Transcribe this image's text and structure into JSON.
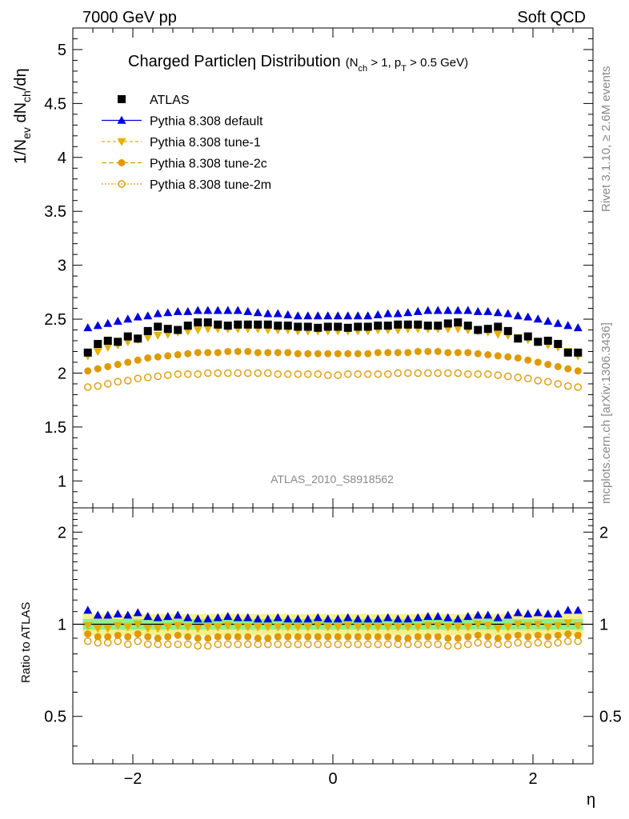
{
  "header": {
    "left": "7000 GeV pp",
    "right": "Soft QCD"
  },
  "side_labels": {
    "rivet": "Rivet 3.1.10, ≥ 2.6M events",
    "mcplots": "mcplots.cern.ch [arXiv:1306.3436]"
  },
  "chart_data": [
    {
      "type": "scatter",
      "title_main": "Charged Particle",
      "title_eta": "η",
      "title_tail": " Distribution",
      "title_cut": "(N",
      "title_cut_sub": "ch",
      "title_cut_2": " > 1, p",
      "title_cut_sub2": "T",
      "title_cut_3": " > 0.5 GeV)",
      "ylabel_main": "1/N",
      "ylabel_sub1": "ev",
      "ylabel_mid": " dN",
      "ylabel_sub2": "ch",
      "ylabel_tail": "/dη",
      "xlabel": "η",
      "xlim": [
        -2.6,
        2.6
      ],
      "ylim": [
        0.75,
        5.2
      ],
      "yticks": [
        1,
        1.5,
        2,
        2.5,
        3,
        3.5,
        4,
        4.5,
        5
      ],
      "ytick_labels": [
        "1",
        "1.5",
        "2",
        "2.5",
        "3",
        "3.5",
        "4",
        "4.5",
        "5"
      ],
      "watermark": "ATLAS_2010_S8918562",
      "legend_position": "top-left",
      "x": [
        -2.45,
        -2.35,
        -2.25,
        -2.15,
        -2.05,
        -1.95,
        -1.85,
        -1.75,
        -1.65,
        -1.55,
        -1.45,
        -1.35,
        -1.25,
        -1.15,
        -1.05,
        -0.95,
        -0.85,
        -0.75,
        -0.65,
        -0.55,
        -0.45,
        -0.35,
        -0.25,
        -0.15,
        -0.05,
        0.05,
        0.15,
        0.25,
        0.35,
        0.45,
        0.55,
        0.65,
        0.75,
        0.85,
        0.95,
        1.05,
        1.15,
        1.25,
        1.35,
        1.45,
        1.55,
        1.65,
        1.75,
        1.85,
        1.95,
        2.05,
        2.15,
        2.25,
        2.35,
        2.45
      ],
      "series": [
        {
          "name": "ATLAS",
          "color": "#000000",
          "marker": "square",
          "values": [
            2.19,
            2.27,
            2.3,
            2.29,
            2.34,
            2.32,
            2.39,
            2.43,
            2.41,
            2.4,
            2.44,
            2.47,
            2.47,
            2.45,
            2.44,
            2.45,
            2.45,
            2.45,
            2.45,
            2.44,
            2.44,
            2.43,
            2.43,
            2.42,
            2.43,
            2.43,
            2.42,
            2.43,
            2.43,
            2.44,
            2.44,
            2.45,
            2.45,
            2.45,
            2.44,
            2.44,
            2.46,
            2.47,
            2.44,
            2.4,
            2.41,
            2.43,
            2.39,
            2.32,
            2.34,
            2.29,
            2.3,
            2.27,
            2.19,
            2.19
          ]
        },
        {
          "name": "Pythia 8.308 default",
          "color": "#0000e0",
          "marker": "triangle-up",
          "values": [
            2.42,
            2.44,
            2.46,
            2.48,
            2.5,
            2.52,
            2.53,
            2.55,
            2.56,
            2.57,
            2.57,
            2.58,
            2.58,
            2.58,
            2.58,
            2.58,
            2.57,
            2.56,
            2.55,
            2.55,
            2.54,
            2.53,
            2.53,
            2.53,
            2.53,
            2.53,
            2.53,
            2.53,
            2.53,
            2.54,
            2.55,
            2.55,
            2.56,
            2.57,
            2.58,
            2.58,
            2.58,
            2.58,
            2.58,
            2.57,
            2.57,
            2.56,
            2.55,
            2.53,
            2.52,
            2.5,
            2.48,
            2.46,
            2.44,
            2.42
          ]
        },
        {
          "name": "Pythia 8.308 tune-1",
          "color": "#e8b000",
          "marker": "triangle-down",
          "values": [
            2.16,
            2.2,
            2.24,
            2.26,
            2.29,
            2.31,
            2.33,
            2.35,
            2.36,
            2.38,
            2.39,
            2.4,
            2.41,
            2.41,
            2.41,
            2.41,
            2.41,
            2.41,
            2.4,
            2.4,
            2.4,
            2.39,
            2.39,
            2.39,
            2.39,
            2.39,
            2.39,
            2.39,
            2.39,
            2.4,
            2.4,
            2.4,
            2.41,
            2.41,
            2.41,
            2.41,
            2.41,
            2.41,
            2.4,
            2.39,
            2.38,
            2.36,
            2.35,
            2.33,
            2.31,
            2.29,
            2.26,
            2.24,
            2.2,
            2.16
          ]
        },
        {
          "name": "Pythia 8.308 tune-2c",
          "color": "#e09a00",
          "marker": "circle",
          "values": [
            2.02,
            2.04,
            2.06,
            2.08,
            2.1,
            2.12,
            2.14,
            2.15,
            2.16,
            2.17,
            2.18,
            2.19,
            2.19,
            2.19,
            2.2,
            2.2,
            2.2,
            2.19,
            2.19,
            2.19,
            2.19,
            2.18,
            2.18,
            2.18,
            2.18,
            2.18,
            2.18,
            2.18,
            2.18,
            2.19,
            2.19,
            2.19,
            2.19,
            2.2,
            2.2,
            2.2,
            2.19,
            2.19,
            2.19,
            2.18,
            2.17,
            2.16,
            2.15,
            2.14,
            2.12,
            2.1,
            2.08,
            2.06,
            2.04,
            2.02
          ]
        },
        {
          "name": "Pythia 8.308 tune-2m",
          "color": "#e09a00",
          "marker": "open-circle",
          "values": [
            1.87,
            1.88,
            1.9,
            1.92,
            1.93,
            1.95,
            1.96,
            1.97,
            1.98,
            1.99,
            1.99,
            1.99,
            2.0,
            2.0,
            2.0,
            2.0,
            2.0,
            2.0,
            2.0,
            1.99,
            1.99,
            1.99,
            1.99,
            1.99,
            1.98,
            1.98,
            1.99,
            1.99,
            1.99,
            1.99,
            1.99,
            2.0,
            2.0,
            2.0,
            2.0,
            2.0,
            2.0,
            2.0,
            1.99,
            1.99,
            1.99,
            1.98,
            1.97,
            1.96,
            1.95,
            1.93,
            1.92,
            1.9,
            1.88,
            1.87
          ]
        }
      ]
    },
    {
      "type": "scatter",
      "ylabel": "Ratio to ATLAS",
      "ylim": [
        0.35,
        2.4
      ],
      "log_scale_y": true,
      "yticks": [
        0.5,
        1,
        2
      ],
      "ytick_labels": [
        "0.5",
        "1",
        "2"
      ],
      "xticks": [
        -2,
        0,
        2
      ],
      "xtick_labels": [
        "−2",
        "0",
        "2"
      ],
      "reference_band_stat": 0.04,
      "reference_band_total": 0.08,
      "series": [
        {
          "name": "Pythia 8.308 default",
          "values": [
            1.11,
            1.07,
            1.07,
            1.08,
            1.07,
            1.09,
            1.06,
            1.05,
            1.06,
            1.07,
            1.05,
            1.04,
            1.04,
            1.05,
            1.06,
            1.05,
            1.05,
            1.04,
            1.04,
            1.05,
            1.04,
            1.04,
            1.04,
            1.05,
            1.04,
            1.04,
            1.05,
            1.04,
            1.04,
            1.04,
            1.05,
            1.04,
            1.04,
            1.05,
            1.06,
            1.06,
            1.05,
            1.04,
            1.06,
            1.07,
            1.07,
            1.05,
            1.07,
            1.09,
            1.08,
            1.09,
            1.08,
            1.08,
            1.11,
            1.11
          ]
        },
        {
          "name": "Pythia 8.308 tune-1",
          "values": [
            0.99,
            0.97,
            0.97,
            0.99,
            0.98,
            1.0,
            0.97,
            0.97,
            0.98,
            0.99,
            0.98,
            0.97,
            0.98,
            0.98,
            0.99,
            0.98,
            0.98,
            0.98,
            0.98,
            0.98,
            0.98,
            0.98,
            0.98,
            0.99,
            0.98,
            0.98,
            0.99,
            0.98,
            0.98,
            0.98,
            0.98,
            0.98,
            0.98,
            0.98,
            0.99,
            0.99,
            0.98,
            0.98,
            0.98,
            1.0,
            0.99,
            0.97,
            0.98,
            1.0,
            0.99,
            1.0,
            0.98,
            0.99,
            1.01,
            0.99
          ]
        },
        {
          "name": "Pythia 8.308 tune-2c",
          "values": [
            0.93,
            0.91,
            0.91,
            0.92,
            0.91,
            0.93,
            0.91,
            0.9,
            0.91,
            0.92,
            0.91,
            0.9,
            0.9,
            0.91,
            0.91,
            0.91,
            0.91,
            0.9,
            0.9,
            0.91,
            0.91,
            0.91,
            0.91,
            0.91,
            0.91,
            0.91,
            0.91,
            0.91,
            0.91,
            0.91,
            0.91,
            0.9,
            0.9,
            0.91,
            0.91,
            0.91,
            0.9,
            0.9,
            0.91,
            0.92,
            0.91,
            0.9,
            0.91,
            0.92,
            0.91,
            0.92,
            0.91,
            0.92,
            0.93,
            0.92
          ]
        },
        {
          "name": "Pythia 8.308 tune-2m",
          "values": [
            0.88,
            0.87,
            0.87,
            0.88,
            0.86,
            0.88,
            0.86,
            0.86,
            0.86,
            0.86,
            0.86,
            0.85,
            0.85,
            0.86,
            0.86,
            0.86,
            0.86,
            0.86,
            0.86,
            0.86,
            0.86,
            0.86,
            0.86,
            0.86,
            0.86,
            0.86,
            0.86,
            0.86,
            0.86,
            0.86,
            0.86,
            0.86,
            0.86,
            0.86,
            0.86,
            0.86,
            0.85,
            0.85,
            0.86,
            0.87,
            0.86,
            0.86,
            0.86,
            0.87,
            0.86,
            0.87,
            0.86,
            0.87,
            0.88,
            0.88
          ]
        }
      ]
    }
  ]
}
